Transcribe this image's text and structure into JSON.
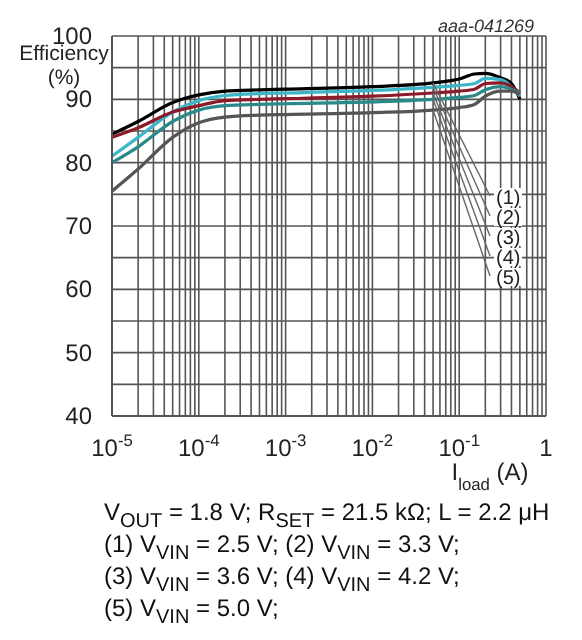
{
  "chart_data": {
    "type": "line",
    "xlabel": "I$_{load}$ (A)",
    "ylabel": "Efficiency (%)",
    "annotations": [
      "aaa-041269",
      "V$_{OUT}$ = 1.8 V; R$_{SET}$ = 21.5 kΩ; L = 2.2 μH",
      "(1) V$_{VIN}$ = 2.5 V; (2) V$_{VIN}$ = 3.3 V;",
      "(3) V$_{VIN}$ = 3.6 V; (4) V$_{VIN}$ = 4.2 V;",
      "(5) V$_{VIN}$ = 5.0 V;"
    ],
    "x": [
      1e-05,
      2e-05,
      5e-05,
      0.0001,
      0.0002,
      0.0005,
      0.001,
      0.01,
      0.05,
      0.1,
      0.15,
      0.2,
      0.3,
      0.4,
      0.5
    ],
    "series": [
      {
        "name": "(1)",
        "color": "#000000",
        "values": [
          84.5,
          86.5,
          89.5,
          90.7,
          91.3,
          91.5,
          91.6,
          92.0,
          92.6,
          93.2,
          94.0,
          94.1,
          93.4,
          92.5,
          90.0
        ]
      },
      {
        "name": "(2)",
        "color": "#3bb6c8",
        "values": [
          81,
          84,
          88,
          89.8,
          90.6,
          90.9,
          91.0,
          91.4,
          91.9,
          92.2,
          92.5,
          93.3,
          93.1,
          92.0,
          90.5
        ]
      },
      {
        "name": "(3)",
        "color": "#8b1a2b",
        "values": [
          84,
          85.5,
          88,
          89,
          89.8,
          90,
          90.1,
          90.5,
          91,
          91.3,
          91.6,
          92.5,
          92.6,
          92,
          91
        ]
      },
      {
        "name": "(4)",
        "color": "#2a8a8a",
        "values": [
          80,
          82.5,
          86.5,
          88.3,
          89,
          89.2,
          89.3,
          89.6,
          90,
          90.3,
          90.6,
          91.5,
          92.0,
          91.6,
          91
        ]
      },
      {
        "name": "(5)",
        "color": "#555555",
        "values": [
          75.5,
          79,
          84,
          86.3,
          87.2,
          87.5,
          87.6,
          87.9,
          88.3,
          88.7,
          89.2,
          90.5,
          91.3,
          91.3,
          90.8
        ]
      }
    ],
    "log": "x",
    "xlim": [
      1e-05,
      1
    ],
    "ylim": [
      40,
      100
    ],
    "xticks": [
      {
        "value": 1e-05,
        "label": "10$^{-5}$"
      },
      {
        "value": 2e-05,
        "label": null
      },
      {
        "value": 3e-05,
        "label": null
      },
      {
        "value": 4e-05,
        "label": null
      },
      {
        "value": 5e-05,
        "label": null
      },
      {
        "value": 6e-05,
        "label": null
      },
      {
        "value": 7e-05,
        "label": null
      },
      {
        "value": 8e-05,
        "label": null
      },
      {
        "value": 9e-05,
        "label": null
      },
      {
        "value": 0.0001,
        "label": "10$^{-4}$"
      },
      {
        "value": 0.0002,
        "label": null
      },
      {
        "value": 0.0003,
        "label": null
      },
      {
        "value": 0.0004,
        "label": null
      },
      {
        "value": 0.0005,
        "label": null
      },
      {
        "value": 0.0006,
        "label": null
      },
      {
        "value": 0.0007,
        "label": null
      },
      {
        "value": 0.0008,
        "label": null
      },
      {
        "value": 0.0009,
        "label": null
      },
      {
        "value": 0.001,
        "label": "10$^{-3}$"
      },
      {
        "value": 0.002,
        "label": null
      },
      {
        "value": 0.003,
        "label": null
      },
      {
        "value": 0.004,
        "label": null
      },
      {
        "value": 0.005,
        "label": null
      },
      {
        "value": 0.006,
        "label": null
      },
      {
        "value": 0.007,
        "label": null
      },
      {
        "value": 0.008,
        "label": null
      },
      {
        "value": 0.009,
        "label": null
      },
      {
        "value": 0.01,
        "label": "10$^{-2}$"
      },
      {
        "value": 0.02,
        "label": null
      },
      {
        "value": 0.03,
        "label": null
      },
      {
        "value": 0.04,
        "label": null
      },
      {
        "value": 0.05,
        "label": null
      },
      {
        "value": 0.06,
        "label": null
      },
      {
        "value": 0.07,
        "label": null
      },
      {
        "value": 0.08,
        "label": null
      },
      {
        "value": 0.09,
        "label": null
      },
      {
        "value": 0.1,
        "label": "10$^{-1}$"
      },
      {
        "value": 0.2,
        "label": null
      },
      {
        "value": 0.3,
        "label": null
      },
      {
        "value": 0.4,
        "label": null
      },
      {
        "value": 0.5,
        "label": null
      },
      {
        "value": 0.6,
        "label": null
      },
      {
        "value": 0.7,
        "label": null
      },
      {
        "value": 0.8,
        "label": null
      },
      {
        "value": 0.9,
        "label": null
      },
      1
    ],
    "yticks": [
      40,
      {
        "value": 45,
        "label": null
      },
      50,
      {
        "value": 55,
        "label": null
      },
      60,
      {
        "value": 65,
        "label": null
      },
      70,
      {
        "value": 75,
        "label": null
      },
      80,
      {
        "value": 85,
        "label": null
      },
      90,
      {
        "value": 95,
        "label": null
      },
      100
    ],
    "grid": true,
    "marker": "none",
    "line_style": "solid"
  }
}
